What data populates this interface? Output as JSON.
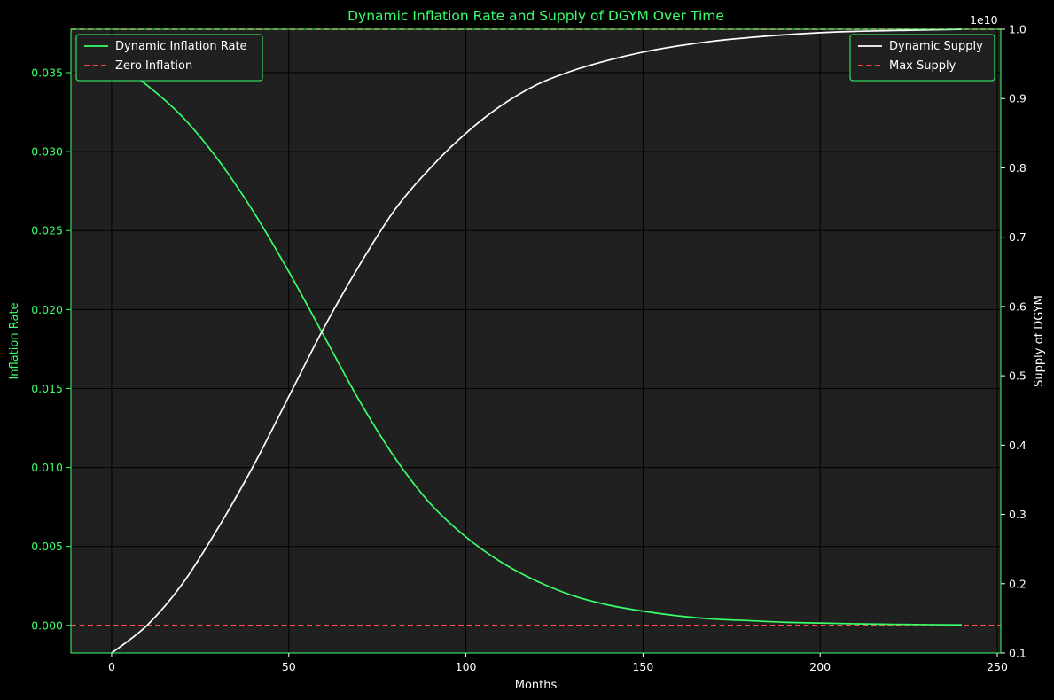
{
  "chart_data": {
    "type": "line",
    "title": "Dynamic Inflation Rate and Supply of DGYM Over Time",
    "xlabel": "Months",
    "ylabel_left": "Inflation Rate",
    "ylabel_right": "Supply of DGYM",
    "right_offset_text": "1e10",
    "xlim": [
      -11.5,
      251
    ],
    "ylim_left": [
      -0.00175,
      0.03775
    ],
    "ylim_right": [
      0.1,
      1.0
    ],
    "x_ticks": [
      0,
      50,
      100,
      150,
      200,
      250
    ],
    "y_ticks_left": [
      0.0,
      0.005,
      0.01,
      0.015,
      0.02,
      0.025,
      0.03,
      0.035
    ],
    "y_ticks_left_labels": [
      "0.000",
      "0.005",
      "0.010",
      "0.015",
      "0.020",
      "0.025",
      "0.030",
      "0.035"
    ],
    "y_ticks_right": [
      0.1,
      0.2,
      0.3,
      0.4,
      0.5,
      0.6,
      0.7,
      0.8,
      0.9,
      1.0
    ],
    "y_ticks_right_labels": [
      "0.1",
      "0.2",
      "0.3",
      "0.4",
      "0.5",
      "0.6",
      "0.7",
      "0.8",
      "0.9",
      "1.0"
    ],
    "grid": true,
    "colors": {
      "figure_bg": "#000000",
      "axes_bg": "#202020",
      "accent": "#39ff6a",
      "supply": "#ffffff",
      "reference": "#ff4d4d",
      "grid": "#000000"
    },
    "legends": {
      "left": {
        "position": "upper-left",
        "entries": [
          {
            "label": "Dynamic Inflation Rate",
            "color": "#39ff6a",
            "style": "solid"
          },
          {
            "label": "Zero Inflation",
            "color": "#ff4d4d",
            "style": "dashed"
          }
        ]
      },
      "right": {
        "position": "upper-right",
        "entries": [
          {
            "label": "Dynamic Supply",
            "color": "#ffffff",
            "style": "solid"
          },
          {
            "label": "Max Supply",
            "color": "#ff4d4d",
            "style": "dashed"
          }
        ]
      }
    },
    "series": [
      {
        "name": "Dynamic Inflation Rate",
        "axis": "left",
        "color": "#39ff6a",
        "style": "solid",
        "x": [
          0,
          10,
          20,
          30,
          40,
          50,
          60,
          70,
          80,
          90,
          100,
          110,
          120,
          130,
          140,
          150,
          160,
          170,
          180,
          190,
          200,
          210,
          220,
          230,
          240
        ],
        "y": [
          0.0358,
          0.0342,
          0.0322,
          0.0295,
          0.0262,
          0.0224,
          0.0183,
          0.0142,
          0.0106,
          0.0077,
          0.0056,
          0.004,
          0.0028,
          0.0019,
          0.0013,
          0.0009,
          0.0006,
          0.0004,
          0.0003,
          0.0002,
          0.00015,
          0.0001,
          7e-05,
          5e-05,
          3e-05
        ]
      },
      {
        "name": "Dynamic Supply",
        "axis": "right",
        "color": "#ffffff",
        "style": "solid",
        "x": [
          0,
          10,
          20,
          30,
          40,
          50,
          60,
          70,
          80,
          90,
          100,
          110,
          120,
          130,
          140,
          150,
          160,
          170,
          180,
          190,
          200,
          210,
          220,
          230,
          240
        ],
        "y": [
          0.1,
          0.14,
          0.2,
          0.28,
          0.37,
          0.47,
          0.57,
          0.66,
          0.74,
          0.8,
          0.85,
          0.89,
          0.92,
          0.94,
          0.955,
          0.967,
          0.976,
          0.983,
          0.988,
          0.992,
          0.995,
          0.997,
          0.998,
          0.999,
          1.0
        ]
      },
      {
        "name": "Zero Inflation",
        "axis": "left",
        "color": "#ff4d4d",
        "style": "dashed",
        "constant": 0.0
      },
      {
        "name": "Max Supply",
        "axis": "right",
        "color": "#ff4d4d",
        "style": "dashed",
        "constant": 1.0
      }
    ]
  }
}
